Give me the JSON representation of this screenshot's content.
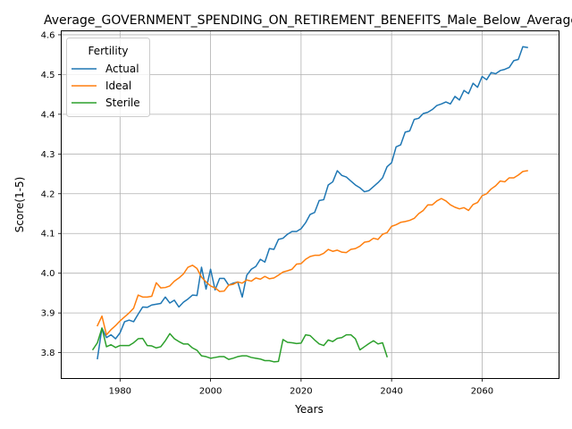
{
  "chart_data": {
    "type": "line",
    "title": "Average_GOVERNMENT_SPENDING_ON_RETIREMENT_BENEFITS_Male_Below_Average",
    "xlabel": "Years",
    "ylabel": "Score(1-5)",
    "xlim": [
      1967,
      2077
    ],
    "ylim": [
      3.735,
      4.61
    ],
    "xticks": [
      1980,
      2000,
      2020,
      2040,
      2060
    ],
    "yticks": [
      3.8,
      3.9,
      4.0,
      4.1,
      4.2,
      4.3,
      4.4,
      4.5,
      4.6
    ],
    "grid": true,
    "legend": {
      "title": "Fertility",
      "position": "upper-left"
    },
    "series": [
      {
        "name": "Actual",
        "color": "#1f77b4",
        "x": [
          1975,
          1976,
          1977,
          1978,
          1979,
          1980,
          1981,
          1982,
          1983,
          1984,
          1985,
          1986,
          1987,
          1988,
          1989,
          1990,
          1991,
          1992,
          1993,
          1994,
          1995,
          1996,
          1997,
          1998,
          1999,
          2000,
          2001,
          2002,
          2003,
          2004,
          2005,
          2006,
          2007,
          2008,
          2009,
          2010,
          2011,
          2012,
          2013,
          2014,
          2015,
          2016,
          2017,
          2018,
          2019,
          2020,
          2021,
          2022,
          2023,
          2024,
          2025,
          2026,
          2027,
          2028,
          2029,
          2030,
          2031,
          2032,
          2033,
          2034,
          2035,
          2036,
          2037,
          2038,
          2039,
          2040,
          2041,
          2042,
          2043,
          2044,
          2045,
          2046,
          2047,
          2048,
          2049,
          2050,
          2051,
          2052,
          2053,
          2054,
          2055,
          2056,
          2057,
          2058,
          2059,
          2060,
          2061,
          2062,
          2063,
          2064,
          2065,
          2066,
          2067,
          2068,
          2069,
          2070
        ],
        "values": [
          3.785,
          3.862,
          3.838,
          3.845,
          3.835,
          3.85,
          3.878,
          3.882,
          3.878,
          3.897,
          3.915,
          3.914,
          3.92,
          3.922,
          3.924,
          3.94,
          3.925,
          3.932,
          3.915,
          3.927,
          3.935,
          3.945,
          3.944,
          4.015,
          3.96,
          4.01,
          3.958,
          3.987,
          3.987,
          3.97,
          3.975,
          3.978,
          3.94,
          3.995,
          4.01,
          4.017,
          4.035,
          4.028,
          4.062,
          4.06,
          4.085,
          4.088,
          4.098,
          4.105,
          4.105,
          4.112,
          4.127,
          4.148,
          4.153,
          4.183,
          4.185,
          4.222,
          4.23,
          4.258,
          4.246,
          4.242,
          4.232,
          4.222,
          4.215,
          4.205,
          4.208,
          4.218,
          4.228,
          4.24,
          4.268,
          4.278,
          4.318,
          4.323,
          4.355,
          4.358,
          4.387,
          4.39,
          4.402,
          4.405,
          4.412,
          4.422,
          4.426,
          4.431,
          4.426,
          4.445,
          4.436,
          4.46,
          4.452,
          4.478,
          4.468,
          4.495,
          4.487,
          4.505,
          4.502,
          4.51,
          4.513,
          4.518,
          4.535,
          4.538,
          4.57,
          4.568
        ]
      },
      {
        "name": "Ideal",
        "color": "#ff7f0e",
        "x": [
          1975,
          1976,
          1977,
          1978,
          1979,
          1980,
          1981,
          1982,
          1983,
          1984,
          1985,
          1986,
          1987,
          1988,
          1989,
          1990,
          1991,
          1992,
          1993,
          1994,
          1995,
          1996,
          1997,
          1998,
          1999,
          2000,
          2001,
          2002,
          2003,
          2004,
          2005,
          2006,
          2007,
          2008,
          2009,
          2010,
          2011,
          2012,
          2013,
          2014,
          2015,
          2016,
          2017,
          2018,
          2019,
          2020,
          2021,
          2022,
          2023,
          2024,
          2025,
          2026,
          2027,
          2028,
          2029,
          2030,
          2031,
          2032,
          2033,
          2034,
          2035,
          2036,
          2037,
          2038,
          2039,
          2040,
          2041,
          2042,
          2043,
          2044,
          2045,
          2046,
          2047,
          2048,
          2049,
          2050,
          2051,
          2052,
          2053,
          2054,
          2055,
          2056,
          2057,
          2058,
          2059,
          2060,
          2061,
          2062,
          2063,
          2064,
          2065,
          2066,
          2067,
          2068,
          2069,
          2070
        ],
        "values": [
          3.868,
          3.892,
          3.845,
          3.858,
          3.868,
          3.88,
          3.89,
          3.9,
          3.912,
          3.945,
          3.94,
          3.94,
          3.942,
          3.976,
          3.963,
          3.964,
          3.968,
          3.98,
          3.988,
          3.998,
          4.015,
          4.02,
          4.012,
          3.99,
          3.978,
          3.968,
          3.963,
          3.954,
          3.955,
          3.97,
          3.972,
          3.978,
          3.975,
          3.983,
          3.98,
          3.988,
          3.985,
          3.992,
          3.986,
          3.988,
          3.995,
          4.003,
          4.006,
          4.01,
          4.023,
          4.024,
          4.035,
          4.042,
          4.045,
          4.045,
          4.05,
          4.06,
          4.055,
          4.058,
          4.053,
          4.052,
          4.06,
          4.062,
          4.068,
          4.078,
          4.08,
          4.088,
          4.085,
          4.098,
          4.102,
          4.118,
          4.122,
          4.128,
          4.13,
          4.133,
          4.138,
          4.15,
          4.158,
          4.172,
          4.172,
          4.182,
          4.188,
          4.182,
          4.172,
          4.166,
          4.162,
          4.165,
          4.158,
          4.173,
          4.178,
          4.195,
          4.2,
          4.212,
          4.22,
          4.232,
          4.23,
          4.24,
          4.24,
          4.247,
          4.256,
          4.258
        ]
      },
      {
        "name": "Sterile",
        "color": "#2ca02c",
        "x": [
          1974,
          1975,
          1976,
          1977,
          1978,
          1979,
          1980,
          1981,
          1982,
          1983,
          1984,
          1985,
          1986,
          1987,
          1988,
          1989,
          1990,
          1991,
          1992,
          1993,
          1994,
          1995,
          1996,
          1997,
          1998,
          1999,
          2000,
          2001,
          2002,
          2003,
          2004,
          2005,
          2006,
          2007,
          2008,
          2009,
          2010,
          2011,
          2012,
          2013,
          2014,
          2015,
          2016,
          2017,
          2018,
          2019,
          2020,
          2021,
          2022,
          2023,
          2024,
          2025,
          2026,
          2027,
          2028,
          2029,
          2030,
          2031,
          2032,
          2033,
          2034,
          2035,
          2036,
          2037,
          2038,
          2039
        ],
        "values": [
          3.808,
          3.825,
          3.862,
          3.815,
          3.82,
          3.813,
          3.818,
          3.818,
          3.818,
          3.825,
          3.835,
          3.836,
          3.818,
          3.817,
          3.812,
          3.815,
          3.83,
          3.848,
          3.835,
          3.828,
          3.822,
          3.822,
          3.812,
          3.806,
          3.792,
          3.79,
          3.786,
          3.788,
          3.79,
          3.79,
          3.783,
          3.786,
          3.79,
          3.792,
          3.792,
          3.788,
          3.786,
          3.784,
          3.78,
          3.78,
          3.777,
          3.778,
          3.833,
          3.826,
          3.825,
          3.823,
          3.824,
          3.845,
          3.843,
          3.832,
          3.822,
          3.818,
          3.832,
          3.828,
          3.836,
          3.838,
          3.845,
          3.845,
          3.835,
          3.807,
          3.815,
          3.823,
          3.83,
          3.822,
          3.825,
          3.79
        ]
      }
    ]
  }
}
